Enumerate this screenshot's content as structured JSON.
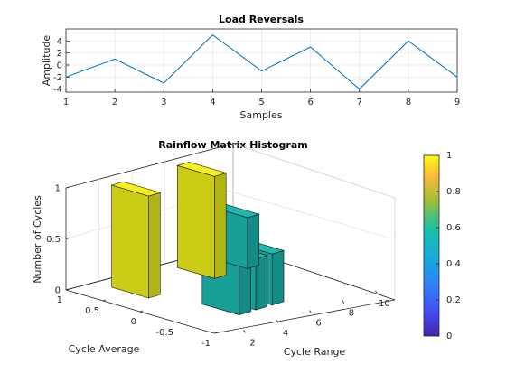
{
  "chart_data": [
    {
      "type": "line",
      "title": "Load Reversals",
      "xlabel": "Samples",
      "ylabel": "Amplitude",
      "x": [
        1,
        2,
        3,
        4,
        5,
        6,
        7,
        8,
        9
      ],
      "series": [
        {
          "values": [
            -2,
            1,
            -3,
            5,
            -1,
            3,
            -4,
            4,
            -2
          ]
        }
      ],
      "xlim": [
        1,
        9
      ],
      "ylim": [
        -4.5,
        6
      ],
      "xticks": [
        "1",
        "2",
        "3",
        "4",
        "5",
        "6",
        "7",
        "8",
        "9"
      ],
      "yticks": [
        "4",
        "2",
        "0",
        "-2",
        "-4"
      ],
      "grid": true,
      "line_color": "#0072BD"
    },
    {
      "type": "bar3",
      "title": "Rainflow Matrix Histogram",
      "xlabel": "Cycle Range",
      "ylabel": "Cycle Average",
      "zlabel": "Number of Cycles",
      "xticks": [
        "2",
        "4",
        "6",
        "8",
        "10"
      ],
      "yticks": [
        "1",
        "0.5",
        "0",
        "-0.5",
        "-1"
      ],
      "zticks": [
        "0",
        "0.5",
        "1"
      ],
      "colorbar_ticks": [
        "0",
        "0.2",
        "0.4",
        "0.6",
        "0.8",
        "1"
      ],
      "bars": [
        {
          "range": 9,
          "average": 0.5,
          "count": 0.5
        },
        {
          "range": 4,
          "average": -0.5,
          "count": 0.5
        },
        {
          "range": 7,
          "average": 0.5,
          "count": 1
        },
        {
          "range": 3,
          "average": 0.5,
          "count": 1
        },
        {
          "range": 5,
          "average": -0.5,
          "count": 0.5
        },
        {
          "range": 6,
          "average": -0.5,
          "count": 0.5
        },
        {
          "range": 4,
          "average": -0.5,
          "count": 0.5
        }
      ]
    }
  ]
}
